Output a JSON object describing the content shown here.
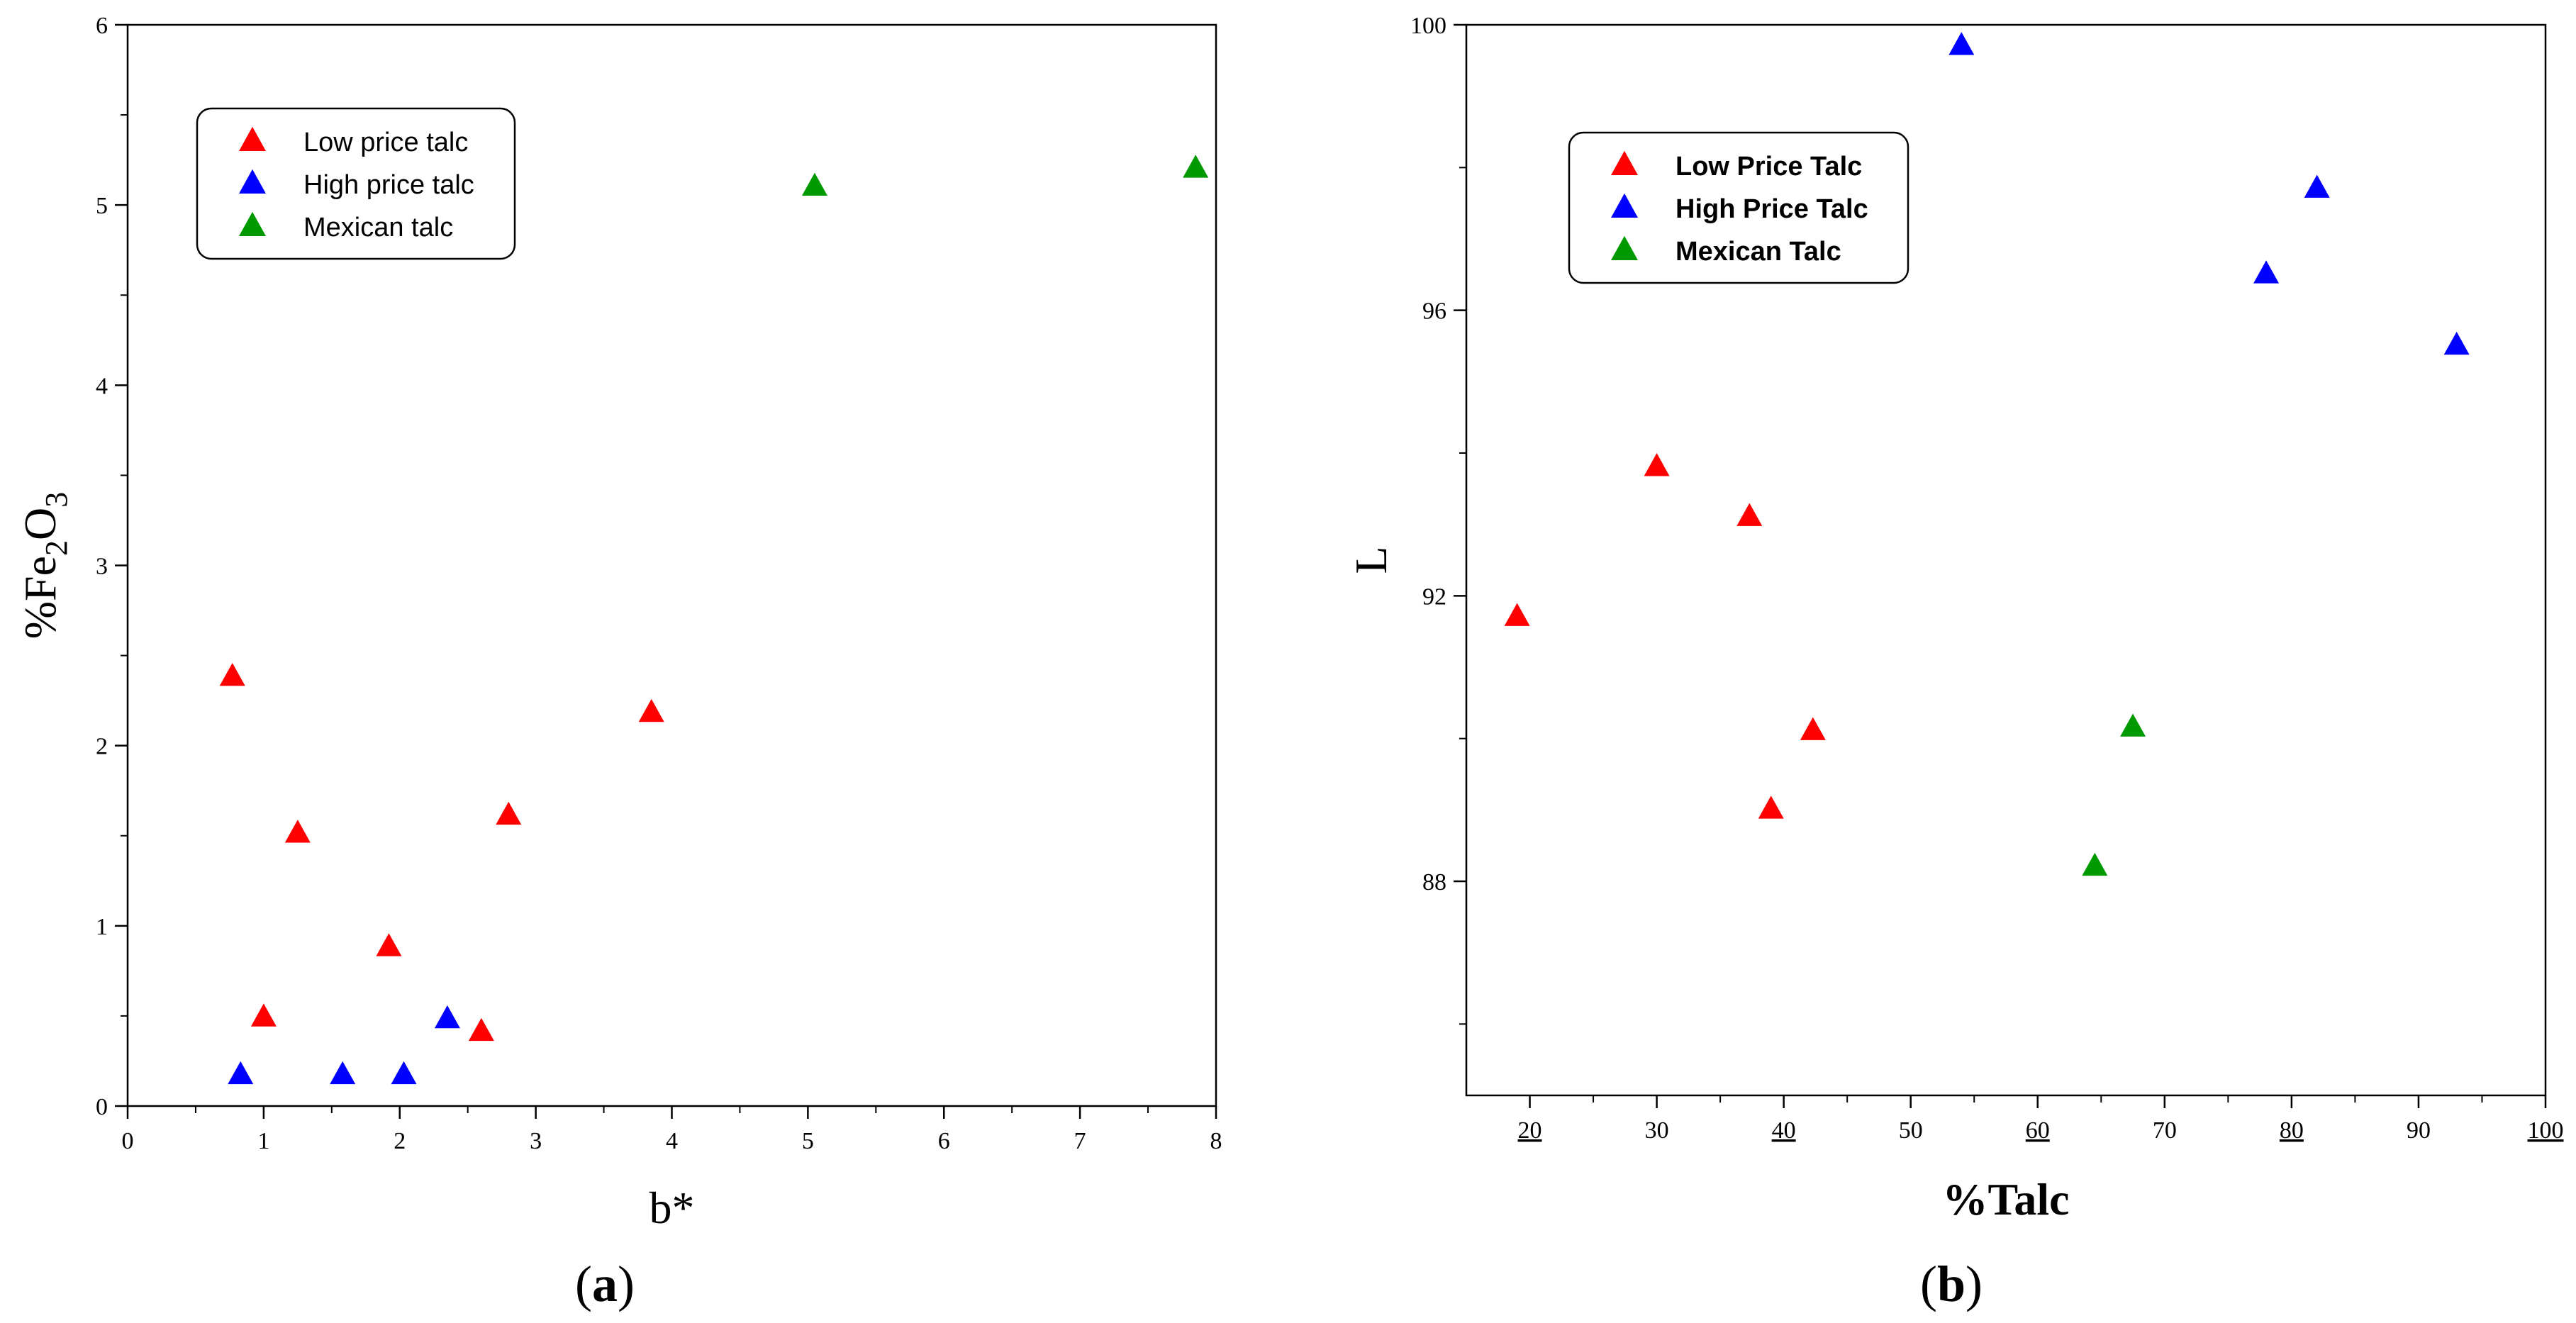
{
  "chart_data": [
    {
      "type": "scatter",
      "panel_label_parts": [
        "(",
        "a",
        ")"
      ],
      "xlabel": "b*",
      "ylabel_parts": [
        "%Fe",
        "2",
        "O",
        "3"
      ],
      "xlim": [
        0,
        8
      ],
      "ylim": [
        0,
        6
      ],
      "xticks": [
        0,
        1,
        2,
        3,
        4,
        5,
        6,
        7,
        8
      ],
      "xtick_labels": [
        "0",
        "1",
        "2",
        "3",
        "4",
        "5",
        "6",
        "7",
        "8"
      ],
      "yticks": [
        0,
        1,
        2,
        3,
        4,
        5,
        6
      ],
      "ytick_labels": [
        "0",
        "1",
        "2",
        "3",
        "4",
        "5",
        "6"
      ],
      "legend_position": "top-left",
      "series": [
        {
          "name": "Low price talc",
          "color": "#ff0000",
          "marker": "triangle",
          "points": [
            [
              0.77,
              2.38
            ],
            [
              1.25,
              1.51
            ],
            [
              1.0,
              0.49
            ],
            [
              1.92,
              0.88
            ],
            [
              2.6,
              0.41
            ],
            [
              2.8,
              1.61
            ],
            [
              3.85,
              2.18
            ]
          ]
        },
        {
          "name": "High price talc",
          "color": "#0000ff",
          "marker": "triangle",
          "points": [
            [
              0.83,
              0.17
            ],
            [
              1.58,
              0.17
            ],
            [
              2.03,
              0.17
            ],
            [
              2.35,
              0.48
            ]
          ]
        },
        {
          "name": "Mexican talc",
          "color": "#009900",
          "marker": "triangle",
          "points": [
            [
              5.05,
              5.1
            ],
            [
              7.85,
              5.2
            ]
          ]
        }
      ]
    },
    {
      "type": "scatter",
      "panel_label_parts": [
        "(",
        "b",
        ")"
      ],
      "xlabel": "%Talc",
      "ylabel": "L",
      "xlim": [
        15,
        100
      ],
      "ylim": [
        85,
        100
      ],
      "xticks": [
        20,
        30,
        40,
        50,
        60,
        70,
        80,
        90,
        100
      ],
      "xtick_labels": [
        "20",
        "30",
        "40",
        "50",
        "60",
        "70",
        "80",
        "90",
        "100"
      ],
      "xtick_underlined": [
        true,
        false,
        true,
        false,
        true,
        false,
        true,
        false,
        true
      ],
      "yticks": [
        88,
        92,
        96,
        100
      ],
      "ytick_labels": [
        "88",
        "92",
        "96",
        "100"
      ],
      "ytick_minor": [
        86,
        90,
        94,
        98
      ],
      "legend_position": "top-left",
      "series": [
        {
          "name": "Low Price Talc",
          "color": "#ff0000",
          "marker": "triangle",
          "points": [
            [
              19,
              91.7
            ],
            [
              30,
              93.8
            ],
            [
              37.3,
              93.1
            ],
            [
              39,
              89.0
            ],
            [
              42.3,
              90.1
            ]
          ]
        },
        {
          "name": "High Price Talc",
          "color": "#0000ff",
          "marker": "triangle",
          "points": [
            [
              54,
              99.7
            ],
            [
              78,
              96.5
            ],
            [
              82,
              97.7
            ],
            [
              93,
              95.5
            ]
          ]
        },
        {
          "name": "Mexican Talc",
          "color": "#009900",
          "marker": "triangle",
          "points": [
            [
              64.5,
              88.2
            ],
            [
              67.5,
              90.15
            ]
          ]
        }
      ]
    }
  ]
}
